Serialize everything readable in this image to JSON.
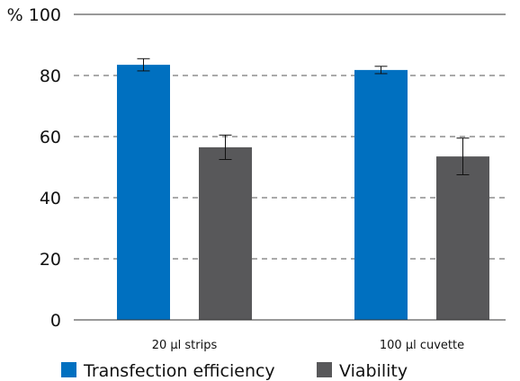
{
  "chart_data": {
    "type": "bar",
    "ylabel": "%",
    "ylim": [
      0,
      100
    ],
    "yticks": [
      0,
      20,
      40,
      60,
      80,
      100
    ],
    "grid": "horizontal dashed",
    "legend_position": "bottom-left",
    "categories": [
      "20 µl strips",
      "100 µl cuvette"
    ],
    "series": [
      {
        "name": "Transfection efficiency",
        "color": "#0070c0",
        "values": [
          83.5,
          81.8
        ],
        "error": [
          2.0,
          1.2
        ]
      },
      {
        "name": "Viability",
        "color": "#58585a",
        "values": [
          56.5,
          53.5
        ],
        "error": [
          4.0,
          6.0
        ]
      }
    ]
  }
}
